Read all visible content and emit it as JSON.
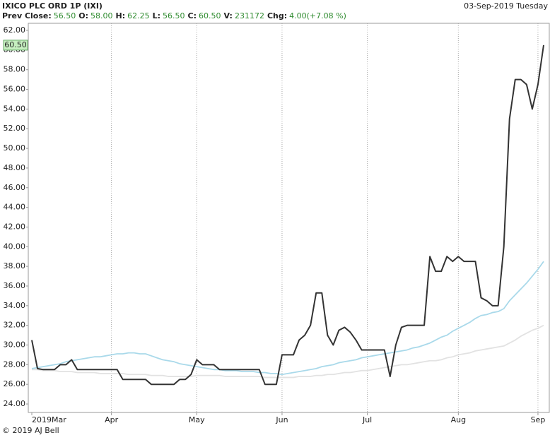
{
  "chart_data": {
    "type": "line",
    "title": "IXICO PLC ORD 1P (IXI)",
    "date": "03-Sep-2019 Tuesday",
    "quote": [
      {
        "label": "Prev Close:",
        "value": "56.50"
      },
      {
        "label": "O:",
        "value": "58.00"
      },
      {
        "label": "H:",
        "value": "62.25"
      },
      {
        "label": "L:",
        "value": "56.50"
      },
      {
        "label": "C:",
        "value": "60.50"
      },
      {
        "label": "V:",
        "value": "231172"
      },
      {
        "label": "Chg:",
        "value": "4.00(+7.08 %)"
      }
    ],
    "last_price": {
      "value": 60.5,
      "label": "60.50"
    },
    "copyright": "© 2019 AJ Bell",
    "categories": [
      "2019Mar",
      null,
      null,
      null,
      null,
      null,
      null,
      null,
      null,
      null,
      null,
      null,
      null,
      null,
      "Apr",
      null,
      null,
      null,
      null,
      null,
      null,
      null,
      null,
      null,
      null,
      null,
      null,
      null,
      null,
      "May",
      null,
      null,
      null,
      null,
      null,
      null,
      null,
      null,
      null,
      null,
      null,
      null,
      null,
      null,
      "Jun",
      null,
      null,
      null,
      null,
      null,
      null,
      null,
      null,
      null,
      null,
      null,
      null,
      null,
      null,
      "Jul",
      null,
      null,
      null,
      null,
      null,
      null,
      null,
      null,
      null,
      null,
      null,
      null,
      null,
      null,
      null,
      "Aug",
      null,
      null,
      null,
      null,
      null,
      null,
      null,
      null,
      null,
      null,
      null,
      null,
      null,
      "Sep",
      null
    ],
    "series": [
      {
        "color": "#e2e2e2",
        "values": [
          27.5,
          27.5,
          27.4,
          27.4,
          27.4,
          27.3,
          27.3,
          27.3,
          27.2,
          27.2,
          27.2,
          27.2,
          27.1,
          27.1,
          27.1,
          27.1,
          27.1,
          27.0,
          27.0,
          27.0,
          27.0,
          26.9,
          26.9,
          26.9,
          26.8,
          26.8,
          26.8,
          26.8,
          26.8,
          26.9,
          26.9,
          26.9,
          26.9,
          26.9,
          26.8,
          26.8,
          26.8,
          26.8,
          26.8,
          26.8,
          26.8,
          26.7,
          26.7,
          26.7,
          26.7,
          26.7,
          26.7,
          26.8,
          26.8,
          26.8,
          26.9,
          26.9,
          27.0,
          27.0,
          27.1,
          27.2,
          27.2,
          27.3,
          27.4,
          27.4,
          27.5,
          27.6,
          27.7,
          27.8,
          27.9,
          28.0,
          28.0,
          28.1,
          28.2,
          28.3,
          28.4,
          28.4,
          28.5,
          28.7,
          28.8,
          29.0,
          29.1,
          29.2,
          29.4,
          29.5,
          29.6,
          29.7,
          29.8,
          29.9,
          30.2,
          30.5,
          30.9,
          31.2,
          31.5,
          31.7,
          32.0
        ]
      },
      {
        "color": "#a9d9ea",
        "values": [
          27.6,
          27.7,
          27.8,
          27.9,
          28.0,
          28.1,
          28.3,
          28.4,
          28.5,
          28.6,
          28.7,
          28.8,
          28.8,
          28.9,
          29.0,
          29.1,
          29.1,
          29.2,
          29.2,
          29.1,
          29.1,
          28.9,
          28.7,
          28.5,
          28.4,
          28.3,
          28.1,
          28.0,
          27.9,
          27.8,
          27.7,
          27.6,
          27.5,
          27.5,
          27.4,
          27.4,
          27.4,
          27.3,
          27.3,
          27.3,
          27.2,
          27.2,
          27.1,
          27.1,
          27.0,
          27.1,
          27.2,
          27.3,
          27.4,
          27.5,
          27.6,
          27.8,
          27.9,
          28.0,
          28.2,
          28.3,
          28.4,
          28.5,
          28.7,
          28.8,
          28.9,
          29.0,
          29.1,
          29.2,
          29.3,
          29.4,
          29.5,
          29.7,
          29.8,
          30.0,
          30.2,
          30.5,
          30.8,
          31.0,
          31.4,
          31.7,
          32.0,
          32.3,
          32.7,
          33.0,
          33.1,
          33.3,
          33.4,
          33.7,
          34.5,
          35.1,
          35.7,
          36.3,
          37.0,
          37.7,
          38.5
        ]
      },
      {
        "color": "#333333",
        "values": [
          30.5,
          27.6,
          27.5,
          27.5,
          27.5,
          28.0,
          28.0,
          28.5,
          27.5,
          27.5,
          27.5,
          27.5,
          27.5,
          27.5,
          27.5,
          27.5,
          26.5,
          26.5,
          26.5,
          26.5,
          26.5,
          26.0,
          26.0,
          26.0,
          26.0,
          26.0,
          26.5,
          26.5,
          27.0,
          28.5,
          28.0,
          28.0,
          28.0,
          27.5,
          27.5,
          27.5,
          27.5,
          27.5,
          27.5,
          27.5,
          27.5,
          26.0,
          26.0,
          26.0,
          29.0,
          29.0,
          29.0,
          30.5,
          31.0,
          32.0,
          35.3,
          35.3,
          31.0,
          30.0,
          31.5,
          31.8,
          31.3,
          30.5,
          29.5,
          29.5,
          29.5,
          29.5,
          29.5,
          26.8,
          30.0,
          31.8,
          32.0,
          32.0,
          32.0,
          32.0,
          39.0,
          37.5,
          37.5,
          39.0,
          38.5,
          39.0,
          38.5,
          38.5,
          38.5,
          34.8,
          34.5,
          34.0,
          34.0,
          40.0,
          53.0,
          57.0,
          57.0,
          56.5,
          54.0,
          56.5,
          60.5
        ]
      }
    ],
    "ylim": [
      23.14,
      62.72
    ],
    "yticks": [
      {
        "value": 24,
        "label": "24.00"
      },
      {
        "value": 26,
        "label": "26.00"
      },
      {
        "value": 28,
        "label": "28.00"
      },
      {
        "value": 30,
        "label": "30.00"
      },
      {
        "value": 32,
        "label": "32.00"
      },
      {
        "value": 34,
        "label": "34.00"
      },
      {
        "value": 36,
        "label": "36.00"
      },
      {
        "value": 38,
        "label": "38.00"
      },
      {
        "value": 40,
        "label": "40.00"
      },
      {
        "value": 42,
        "label": "42.00"
      },
      {
        "value": 44,
        "label": "44.00"
      },
      {
        "value": 46,
        "label": "46.00"
      },
      {
        "value": 48,
        "label": "48.00"
      },
      {
        "value": 50,
        "label": "50.00"
      },
      {
        "value": 52,
        "label": "52.00"
      },
      {
        "value": 54,
        "label": "54.00"
      },
      {
        "value": 56,
        "label": "56.00"
      },
      {
        "value": 58,
        "label": "58.00"
      },
      {
        "value": 60,
        "label": "60.00"
      },
      {
        "value": 62,
        "label": "62.00"
      }
    ],
    "grid": true,
    "value_color": "#2e8b2e",
    "last_price_color": "#c6efc0"
  }
}
